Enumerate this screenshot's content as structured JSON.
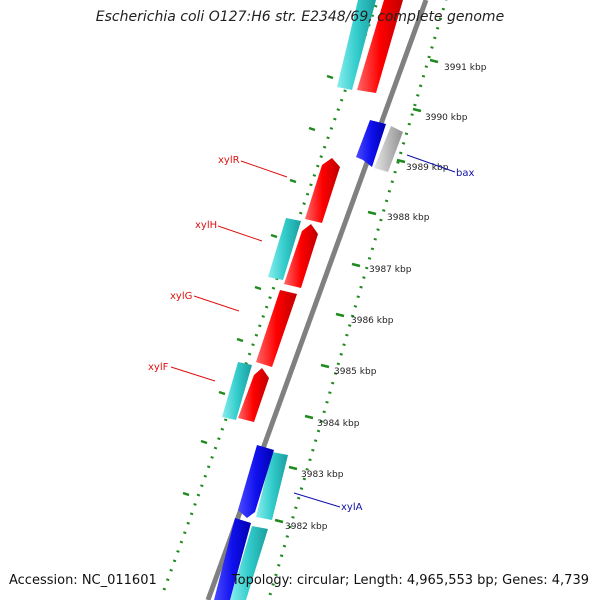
{
  "title": "Escherichia coli O127:H6 str. E2348/69, complete genome",
  "accession": "Accession: NC_011601",
  "topology": "Topology: circular; Length: 4,965,553 bp; Genes: 4,739",
  "ticks": [
    "3982 kbp",
    "3983 kbp",
    "3984 kbp",
    "3985 kbp",
    "3986 kbp",
    "3987 kbp",
    "3988 kbp",
    "3989 kbp",
    "3990 kbp",
    "3991 kbp"
  ],
  "gene_labels": {
    "xylR": "xylR",
    "xylH": "xylH",
    "xylG": "xylG",
    "xylF": "xylF",
    "bax": "bax",
    "xylA": "xylA"
  },
  "colors": {
    "red": "#ff0000",
    "cyan": "#33cccc",
    "blue": "#1010ee",
    "gray": "#bbbbbb",
    "dots": "#1f8a1f",
    "label_red": "#dd1111",
    "label_blue": "#1010aa",
    "backbone": "#808080"
  }
}
